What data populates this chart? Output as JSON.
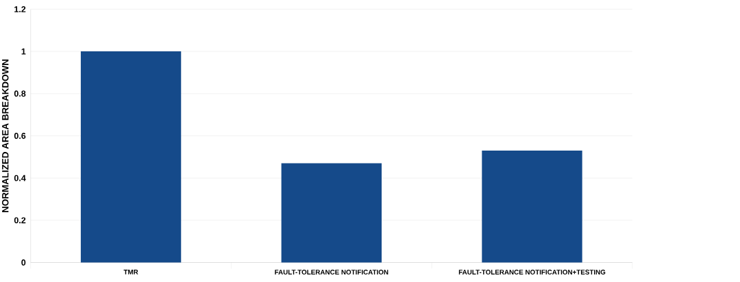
{
  "chart_data": {
    "type": "bar",
    "ylabel": "NORMALIZED AREA BREAKDOWN",
    "categories": [
      "TMR",
      "FAULT-TOLERANCE NOTIFICATION",
      "FAULT-TOLERANCE NOTIFICATION+TESTING"
    ],
    "values": [
      1,
      0.47,
      0.53
    ],
    "color": "#154a8a",
    "ylim": [
      0,
      1.2
    ],
    "yticks": [
      0,
      0.2,
      0.4,
      0.6,
      0.8,
      1,
      1.2
    ],
    "grid": "y"
  }
}
